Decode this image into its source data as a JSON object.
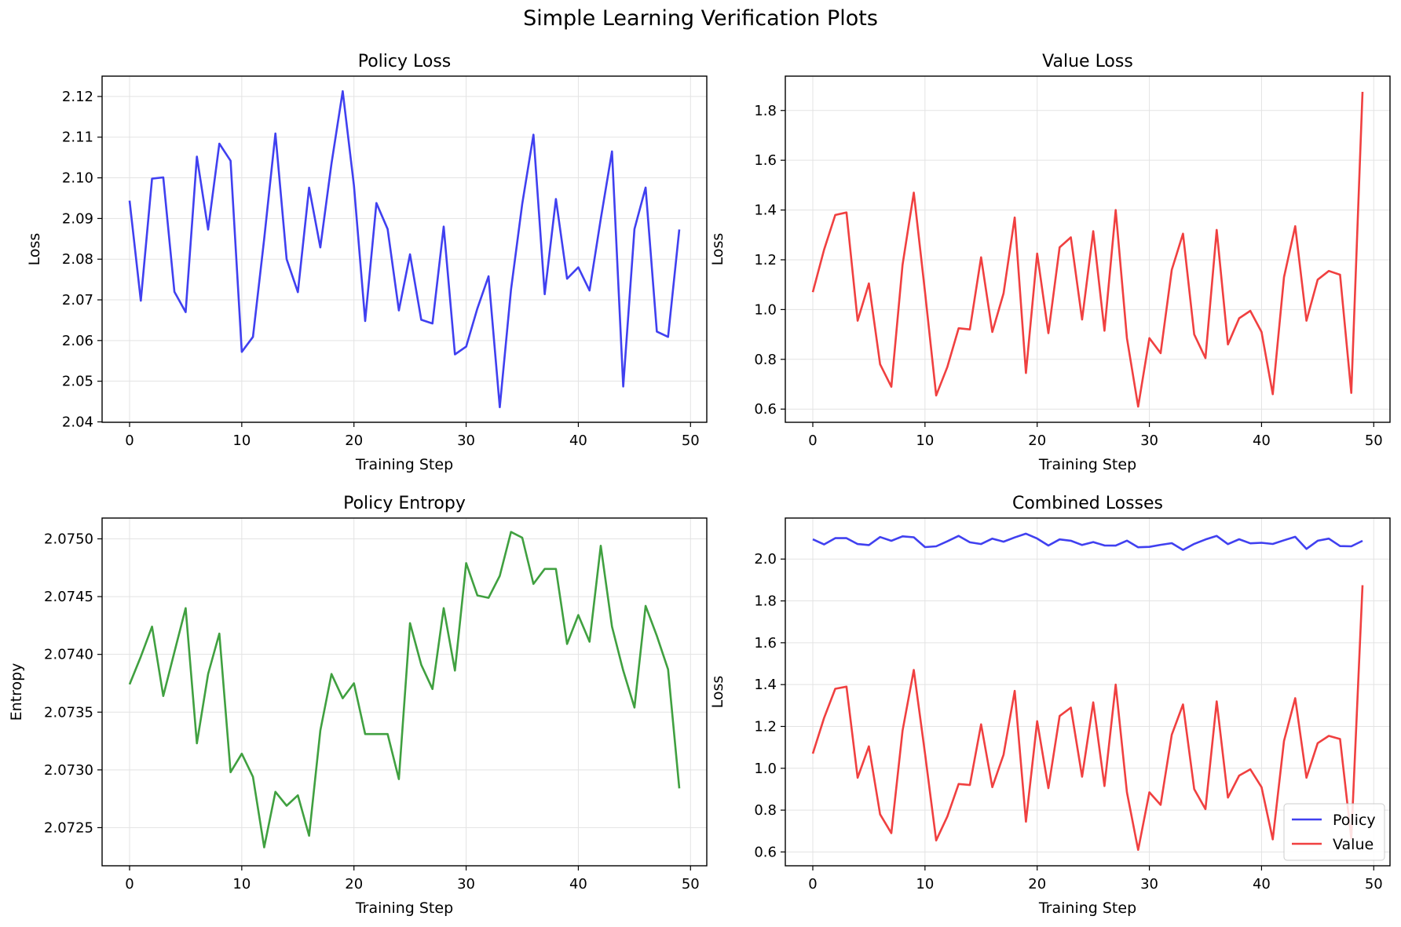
{
  "figure_title": "Simple Learning Verification Plots",
  "chart_data": [
    {
      "id": "policy_loss",
      "type": "line",
      "title": "Policy Loss",
      "xlabel": "Training Step",
      "ylabel": "Loss",
      "xlim": [
        -2.45,
        51.45
      ],
      "ylim": [
        2.0399,
        2.125
      ],
      "xticks": [
        0,
        10,
        20,
        30,
        40,
        50
      ],
      "yticks": [
        2.04,
        2.05,
        2.06,
        2.07,
        2.08,
        2.09,
        2.1,
        2.11,
        2.12
      ],
      "ytick_decimals": 2,
      "grid": true,
      "series": [
        {
          "color": "#4040f0",
          "x": [
            0,
            1,
            2,
            3,
            4,
            5,
            6,
            7,
            8,
            9,
            10,
            11,
            12,
            13,
            14,
            15,
            16,
            17,
            18,
            19,
            20,
            21,
            22,
            23,
            24,
            25,
            26,
            27,
            28,
            29,
            30,
            31,
            32,
            33,
            34,
            35,
            36,
            37,
            38,
            39,
            40,
            41,
            42,
            43,
            44,
            45,
            46,
            47,
            48,
            49
          ],
          "y": [
            2.0944,
            2.0698,
            2.0998,
            2.1001,
            2.072,
            2.067,
            2.1052,
            2.0873,
            2.1084,
            2.1042,
            2.0572,
            2.0609,
            2.085,
            2.1109,
            2.08,
            2.0719,
            2.0976,
            2.0829,
            2.1035,
            2.1213,
            2.0981,
            2.0648,
            2.0938,
            2.0874,
            2.0674,
            2.0812,
            2.0651,
            2.0642,
            2.088,
            2.0566,
            2.0585,
            2.0679,
            2.0758,
            2.0436,
            2.0725,
            2.0936,
            2.1106,
            2.0714,
            2.0948,
            2.0752,
            2.078,
            2.0723,
            2.0899,
            2.1065,
            2.0487,
            2.0874,
            2.0976,
            2.0622,
            2.0609,
            2.0873
          ]
        }
      ]
    },
    {
      "id": "value_loss",
      "type": "line",
      "title": "Value Loss",
      "xlabel": "Training Step",
      "ylabel": "Loss",
      "xlim": [
        -2.45,
        51.45
      ],
      "ylim": [
        0.547,
        1.938
      ],
      "xticks": [
        0,
        10,
        20,
        30,
        40,
        50
      ],
      "yticks": [
        0.6,
        0.8,
        1.0,
        1.2,
        1.4,
        1.6,
        1.8
      ],
      "ytick_decimals": 1,
      "grid": true,
      "series": [
        {
          "color": "#f04040",
          "x": [
            0,
            1,
            2,
            3,
            4,
            5,
            6,
            7,
            8,
            9,
            10,
            11,
            12,
            13,
            14,
            15,
            16,
            17,
            18,
            19,
            20,
            21,
            22,
            23,
            24,
            25,
            26,
            27,
            28,
            29,
            30,
            31,
            32,
            33,
            34,
            35,
            36,
            37,
            38,
            39,
            40,
            41,
            42,
            43,
            44,
            45,
            46,
            47,
            48,
            49
          ],
          "y": [
            1.07,
            1.24,
            1.38,
            1.39,
            0.955,
            1.105,
            0.78,
            0.69,
            1.18,
            1.47,
            1.07,
            0.655,
            0.77,
            0.925,
            0.92,
            1.21,
            0.91,
            1.065,
            1.37,
            0.745,
            1.225,
            0.905,
            1.25,
            1.29,
            0.96,
            1.315,
            0.915,
            1.4,
            0.885,
            0.61,
            0.885,
            0.825,
            1.16,
            1.305,
            0.9,
            0.805,
            1.32,
            0.86,
            0.965,
            0.995,
            0.91,
            0.66,
            1.13,
            1.335,
            0.955,
            1.12,
            1.155,
            1.14,
            0.665,
            1.875
          ]
        }
      ]
    },
    {
      "id": "policy_entropy",
      "type": "line",
      "title": "Policy Entropy",
      "xlabel": "Training Step",
      "ylabel": "Entropy",
      "xlim": [
        -2.45,
        51.45
      ],
      "ylim": [
        2.07217,
        2.07518
      ],
      "xticks": [
        0,
        10,
        20,
        30,
        40,
        50
      ],
      "yticks": [
        2.0725,
        2.073,
        2.0735,
        2.074,
        2.0745,
        2.075
      ],
      "ytick_decimals": 4,
      "grid": true,
      "series": [
        {
          "color": "#40a040",
          "x": [
            0,
            1,
            2,
            3,
            4,
            5,
            6,
            7,
            8,
            9,
            10,
            11,
            12,
            13,
            14,
            15,
            16,
            17,
            18,
            19,
            20,
            21,
            22,
            23,
            24,
            25,
            26,
            27,
            28,
            29,
            30,
            31,
            32,
            33,
            34,
            35,
            36,
            37,
            38,
            39,
            40,
            41,
            42,
            43,
            44,
            45,
            46,
            47,
            48,
            49
          ],
          "y": [
            2.07374,
            2.07398,
            2.07424,
            2.07364,
            2.07402,
            2.0744,
            2.07323,
            2.07383,
            2.07418,
            2.07298,
            2.07314,
            2.07294,
            2.07233,
            2.07281,
            2.07269,
            2.07278,
            2.07243,
            2.07334,
            2.07383,
            2.07362,
            2.07375,
            2.07331,
            2.07331,
            2.07331,
            2.07292,
            2.07427,
            2.07391,
            2.0737,
            2.0744,
            2.07386,
            2.07479,
            2.07451,
            2.07449,
            2.07468,
            2.07506,
            2.07501,
            2.07461,
            2.07474,
            2.07474,
            2.07409,
            2.07434,
            2.07411,
            2.07494,
            2.07424,
            2.07386,
            2.07354,
            2.07442,
            2.07416,
            2.07387,
            2.07284
          ]
        }
      ]
    },
    {
      "id": "combined_losses",
      "type": "line",
      "title": "Combined Losses",
      "xlabel": "Training Step",
      "ylabel": "Loss",
      "xlim": [
        -2.45,
        51.45
      ],
      "ylim": [
        0.534,
        2.196
      ],
      "xticks": [
        0,
        10,
        20,
        30,
        40,
        50
      ],
      "yticks": [
        0.6,
        0.8,
        1.0,
        1.2,
        1.4,
        1.6,
        1.8,
        2.0
      ],
      "ytick_decimals": 1,
      "grid": true,
      "legend": "lower right",
      "series": [
        {
          "name": "Policy",
          "color": "#4040f0",
          "x": [
            0,
            1,
            2,
            3,
            4,
            5,
            6,
            7,
            8,
            9,
            10,
            11,
            12,
            13,
            14,
            15,
            16,
            17,
            18,
            19,
            20,
            21,
            22,
            23,
            24,
            25,
            26,
            27,
            28,
            29,
            30,
            31,
            32,
            33,
            34,
            35,
            36,
            37,
            38,
            39,
            40,
            41,
            42,
            43,
            44,
            45,
            46,
            47,
            48,
            49
          ],
          "y": [
            2.0944,
            2.0698,
            2.0998,
            2.1001,
            2.072,
            2.067,
            2.1052,
            2.0873,
            2.1084,
            2.1042,
            2.0572,
            2.0609,
            2.085,
            2.1109,
            2.08,
            2.0719,
            2.0976,
            2.0829,
            2.1035,
            2.1213,
            2.0981,
            2.0648,
            2.0938,
            2.0874,
            2.0674,
            2.0812,
            2.0651,
            2.0642,
            2.088,
            2.0566,
            2.0585,
            2.0679,
            2.0758,
            2.0436,
            2.0725,
            2.0936,
            2.1106,
            2.0714,
            2.0948,
            2.0752,
            2.078,
            2.0723,
            2.0899,
            2.1065,
            2.0487,
            2.0874,
            2.0976,
            2.0622,
            2.0609,
            2.0873
          ]
        },
        {
          "name": "Value",
          "color": "#f04040",
          "x": [
            0,
            1,
            2,
            3,
            4,
            5,
            6,
            7,
            8,
            9,
            10,
            11,
            12,
            13,
            14,
            15,
            16,
            17,
            18,
            19,
            20,
            21,
            22,
            23,
            24,
            25,
            26,
            27,
            28,
            29,
            30,
            31,
            32,
            33,
            34,
            35,
            36,
            37,
            38,
            39,
            40,
            41,
            42,
            43,
            44,
            45,
            46,
            47,
            48,
            49
          ],
          "y": [
            1.07,
            1.24,
            1.38,
            1.39,
            0.955,
            1.105,
            0.78,
            0.69,
            1.18,
            1.47,
            1.07,
            0.655,
            0.77,
            0.925,
            0.92,
            1.21,
            0.91,
            1.065,
            1.37,
            0.745,
            1.225,
            0.905,
            1.25,
            1.29,
            0.96,
            1.315,
            0.915,
            1.4,
            0.885,
            0.61,
            0.885,
            0.825,
            1.16,
            1.305,
            0.9,
            0.805,
            1.32,
            0.86,
            0.965,
            0.995,
            0.91,
            0.66,
            1.13,
            1.335,
            0.955,
            1.12,
            1.155,
            1.14,
            0.665,
            1.875
          ]
        }
      ]
    }
  ]
}
